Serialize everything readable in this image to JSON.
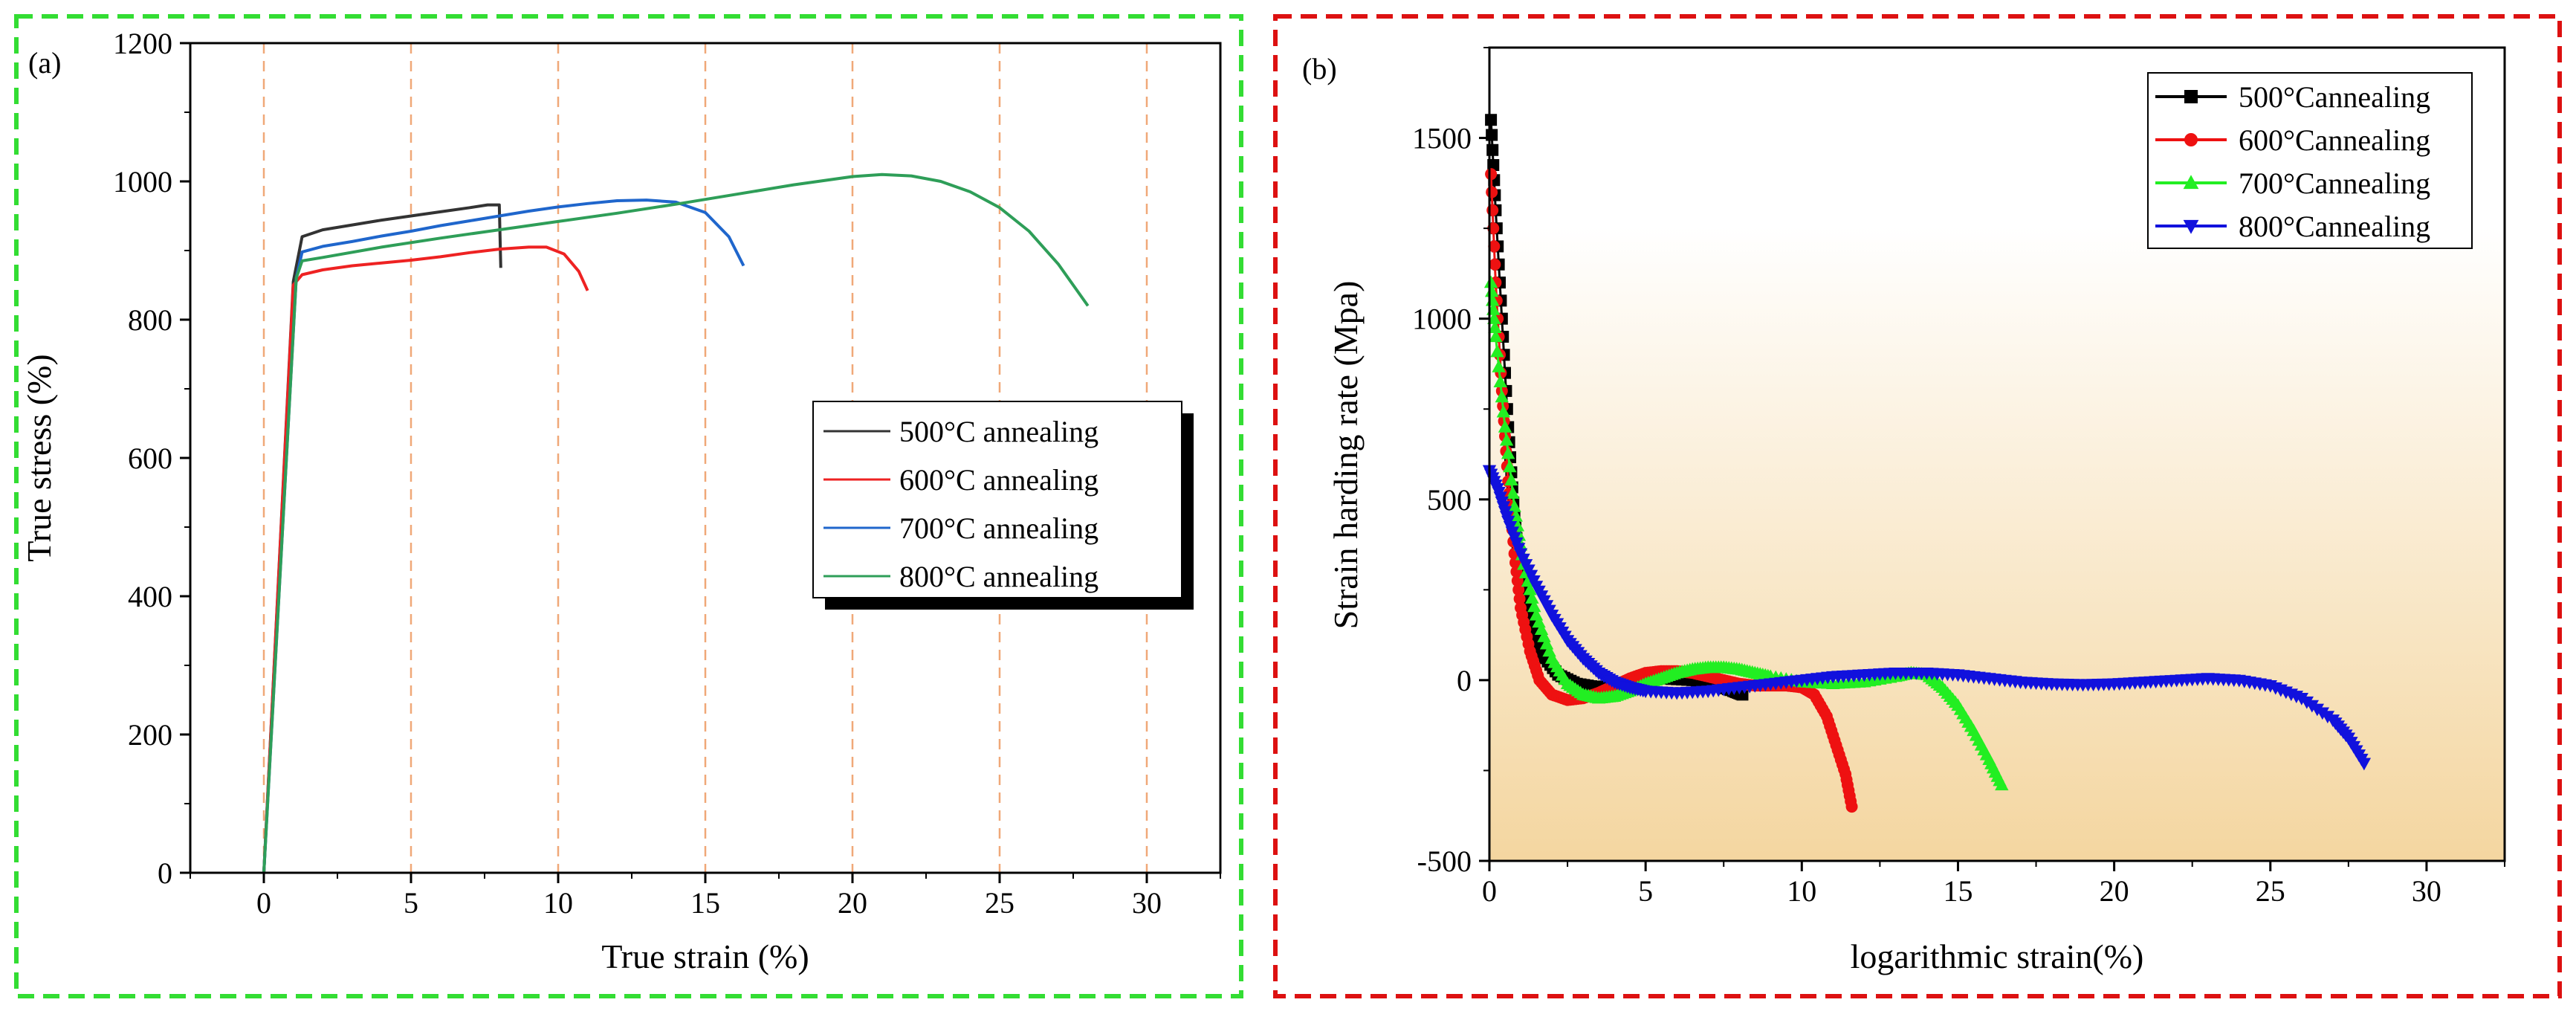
{
  "chart_data": [
    {
      "panel_label": "(a)",
      "type": "line",
      "xlabel": "True strain (%)",
      "ylabel": "True stress (%)",
      "xlim": [
        -2.5,
        32.5
      ],
      "ylim": [
        0,
        1200
      ],
      "xticks": [
        0,
        5,
        10,
        15,
        20,
        25,
        30
      ],
      "yticks": [
        0,
        200,
        400,
        600,
        800,
        1000,
        1200
      ],
      "vlines": [
        0,
        5,
        10,
        15,
        20,
        25,
        30
      ],
      "legend_position": "center-right",
      "series": [
        {
          "name": "500°C annealing",
          "color": "#333333",
          "points": [
            [
              0,
              0
            ],
            [
              1.0,
              855
            ],
            [
              1.3,
              920
            ],
            [
              2,
              930
            ],
            [
              3,
              937
            ],
            [
              4,
              944
            ],
            [
              5,
              950
            ],
            [
              6,
              956
            ],
            [
              7,
              962
            ],
            [
              7.6,
              966
            ],
            [
              8.0,
              966
            ],
            [
              8.05,
              875
            ]
          ]
        },
        {
          "name": "600°C annealing",
          "color": "#ee2222",
          "points": [
            [
              0,
              0
            ],
            [
              1.0,
              850
            ],
            [
              1.3,
              865
            ],
            [
              2,
              872
            ],
            [
              3,
              878
            ],
            [
              4,
              882
            ],
            [
              5,
              886
            ],
            [
              6,
              891
            ],
            [
              7,
              897
            ],
            [
              8,
              902
            ],
            [
              9,
              905
            ],
            [
              9.6,
              905
            ],
            [
              10.2,
              895
            ],
            [
              10.7,
              870
            ],
            [
              11.0,
              842
            ]
          ]
        },
        {
          "name": "700°C annealing",
          "color": "#1f66cc",
          "points": [
            [
              0,
              0
            ],
            [
              1.1,
              860
            ],
            [
              1.3,
              898
            ],
            [
              2,
              906
            ],
            [
              3,
              913
            ],
            [
              4,
              921
            ],
            [
              5,
              928
            ],
            [
              6,
              936
            ],
            [
              7,
              943
            ],
            [
              8,
              950
            ],
            [
              9,
              957
            ],
            [
              10,
              963
            ],
            [
              11,
              968
            ],
            [
              12,
              972
            ],
            [
              13,
              973
            ],
            [
              14,
              970
            ],
            [
              15,
              955
            ],
            [
              15.8,
              920
            ],
            [
              16.3,
              878
            ]
          ]
        },
        {
          "name": "800°C annealing",
          "color": "#2e9e58",
          "points": [
            [
              0,
              0
            ],
            [
              1.1,
              860
            ],
            [
              1.3,
              885
            ],
            [
              2,
              890
            ],
            [
              4,
              905
            ],
            [
              6,
              918
            ],
            [
              8,
              930
            ],
            [
              10,
              942
            ],
            [
              12,
              954
            ],
            [
              14,
              967
            ],
            [
              16,
              981
            ],
            [
              18,
              995
            ],
            [
              20,
              1007
            ],
            [
              21,
              1010
            ],
            [
              22,
              1008
            ],
            [
              23,
              1000
            ],
            [
              24,
              985
            ],
            [
              25,
              962
            ],
            [
              26,
              928
            ],
            [
              27,
              880
            ],
            [
              28,
              820
            ]
          ]
        }
      ]
    },
    {
      "panel_label": "(b)",
      "type": "scatter",
      "xlabel": "logarithmic strain(%)",
      "ylabel": "Strain harding rate (Mpa)",
      "xlim": [
        0,
        32.5
      ],
      "ylim": [
        -500,
        1750
      ],
      "xticks": [
        0,
        5,
        10,
        15,
        20,
        25,
        30
      ],
      "yticks": [
        -500,
        0,
        500,
        1000,
        1500
      ],
      "background_gradient": [
        "#ffffff",
        "#f4d6a0"
      ],
      "legend_position": "top-right",
      "series": [
        {
          "name": "500°Cannealing",
          "color": "#000000",
          "marker": "square",
          "points": [
            [
              0.05,
              1550
            ],
            [
              0.2,
              1300
            ],
            [
              0.4,
              1000
            ],
            [
              0.6,
              700
            ],
            [
              0.8,
              450
            ],
            [
              1.0,
              280
            ],
            [
              1.3,
              160
            ],
            [
              1.7,
              70
            ],
            [
              2.2,
              15
            ],
            [
              2.8,
              -10
            ],
            [
              3.5,
              -20
            ],
            [
              4.5,
              -5
            ],
            [
              5.5,
              5
            ],
            [
              6.5,
              0
            ],
            [
              7.3,
              -15
            ],
            [
              7.8,
              -30
            ],
            [
              8.1,
              -40
            ]
          ]
        },
        {
          "name": "600°Cannealing",
          "color": "#ee1111",
          "marker": "circle",
          "points": [
            [
              0.05,
              1400
            ],
            [
              0.2,
              1100
            ],
            [
              0.4,
              800
            ],
            [
              0.6,
              550
            ],
            [
              0.8,
              350
            ],
            [
              1.0,
              200
            ],
            [
              1.3,
              80
            ],
            [
              1.6,
              0
            ],
            [
              2.0,
              -40
            ],
            [
              2.5,
              -55
            ],
            [
              3.0,
              -50
            ],
            [
              3.5,
              -35
            ],
            [
              4,
              -15
            ],
            [
              4.5,
              5
            ],
            [
              5,
              20
            ],
            [
              5.5,
              25
            ],
            [
              6,
              25
            ],
            [
              6.5,
              20
            ],
            [
              7,
              10
            ],
            [
              7.5,
              0
            ],
            [
              8,
              -10
            ],
            [
              8.5,
              -15
            ],
            [
              9,
              -15
            ],
            [
              9.5,
              -15
            ],
            [
              10,
              -20
            ],
            [
              10.4,
              -40
            ],
            [
              10.8,
              -100
            ],
            [
              11.1,
              -180
            ],
            [
              11.4,
              -260
            ],
            [
              11.6,
              -350
            ]
          ]
        },
        {
          "name": "700°Cannealing",
          "color": "#22ee22",
          "marker": "triangle-up",
          "points": [
            [
              0.05,
              1100
            ],
            [
              0.2,
              950
            ],
            [
              0.5,
              700
            ],
            [
              0.8,
              480
            ],
            [
              1.1,
              320
            ],
            [
              1.5,
              180
            ],
            [
              2,
              60
            ],
            [
              2.5,
              -10
            ],
            [
              3,
              -40
            ],
            [
              3.5,
              -50
            ],
            [
              4,
              -45
            ],
            [
              4.5,
              -30
            ],
            [
              5,
              -10
            ],
            [
              5.5,
              5
            ],
            [
              6,
              20
            ],
            [
              6.5,
              30
            ],
            [
              7,
              35
            ],
            [
              7.5,
              35
            ],
            [
              8,
              30
            ],
            [
              8.5,
              20
            ],
            [
              9,
              10
            ],
            [
              10,
              -5
            ],
            [
              11,
              -10
            ],
            [
              12,
              -5
            ],
            [
              13,
              10
            ],
            [
              13.5,
              20
            ],
            [
              14,
              15
            ],
            [
              14.5,
              -20
            ],
            [
              15,
              -70
            ],
            [
              15.5,
              -140
            ],
            [
              16,
              -220
            ],
            [
              16.4,
              -290
            ]
          ]
        },
        {
          "name": "800°Cannealing",
          "color": "#1111dd",
          "marker": "triangle-down",
          "points": [
            [
              0,
              580
            ],
            [
              0.3,
              520
            ],
            [
              0.6,
              440
            ],
            [
              1,
              350
            ],
            [
              1.5,
              260
            ],
            [
              2,
              180
            ],
            [
              2.5,
              110
            ],
            [
              3,
              60
            ],
            [
              3.5,
              20
            ],
            [
              4,
              -5
            ],
            [
              4.5,
              -20
            ],
            [
              5,
              -30
            ],
            [
              6,
              -35
            ],
            [
              7,
              -30
            ],
            [
              8,
              -20
            ],
            [
              9,
              -10
            ],
            [
              10,
              0
            ],
            [
              11,
              10
            ],
            [
              12,
              15
            ],
            [
              13,
              20
            ],
            [
              14,
              20
            ],
            [
              15,
              15
            ],
            [
              16,
              5
            ],
            [
              17,
              -5
            ],
            [
              18,
              -10
            ],
            [
              19,
              -12
            ],
            [
              20,
              -10
            ],
            [
              21,
              -5
            ],
            [
              22,
              0
            ],
            [
              23,
              5
            ],
            [
              24,
              0
            ],
            [
              25,
              -15
            ],
            [
              26,
              -50
            ],
            [
              27,
              -110
            ],
            [
              27.5,
              -160
            ],
            [
              28,
              -230
            ]
          ]
        }
      ]
    }
  ]
}
